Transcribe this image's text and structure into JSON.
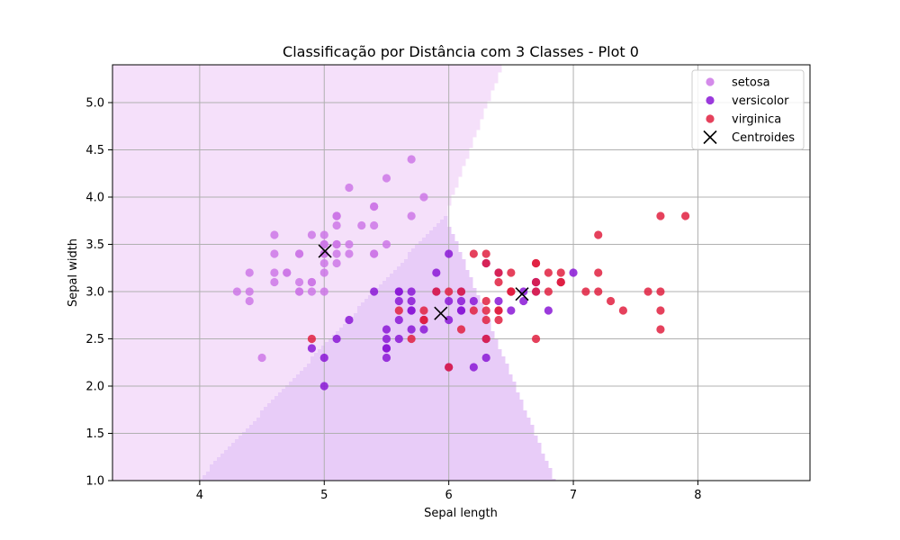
{
  "chart_data": {
    "type": "scatter",
    "title": "Classificação por Distância com 3 Classes - Plot 0",
    "xlabel": "Sepal length",
    "ylabel": "Sepal width",
    "xlim": [
      3.3,
      8.9
    ],
    "ylim": [
      1.0,
      5.4
    ],
    "xticks": [
      4,
      5,
      6,
      7,
      8
    ],
    "yticks": [
      1.0,
      1.5,
      2.0,
      2.5,
      3.0,
      3.5,
      4.0,
      4.5,
      5.0
    ],
    "grid": true,
    "legend": "top-right",
    "regions": [
      {
        "class": "setosa",
        "color": "#f5e0fa"
      },
      {
        "class": "versicolor",
        "color": "#e8ccf8"
      },
      {
        "class": "virginica",
        "color": "#f7ccd6"
      }
    ],
    "series": [
      {
        "name": "setosa",
        "color": "#cc77e6",
        "points": [
          [
            5.1,
            3.5
          ],
          [
            4.9,
            3.0
          ],
          [
            4.7,
            3.2
          ],
          [
            4.6,
            3.1
          ],
          [
            5.0,
            3.6
          ],
          [
            5.4,
            3.9
          ],
          [
            4.6,
            3.4
          ],
          [
            5.0,
            3.4
          ],
          [
            4.4,
            2.9
          ],
          [
            4.9,
            3.1
          ],
          [
            5.4,
            3.7
          ],
          [
            4.8,
            3.4
          ],
          [
            4.8,
            3.0
          ],
          [
            4.3,
            3.0
          ],
          [
            5.8,
            4.0
          ],
          [
            5.7,
            4.4
          ],
          [
            5.4,
            3.9
          ],
          [
            5.1,
            3.5
          ],
          [
            5.7,
            3.8
          ],
          [
            5.1,
            3.8
          ],
          [
            5.4,
            3.4
          ],
          [
            5.1,
            3.7
          ],
          [
            4.6,
            3.6
          ],
          [
            5.1,
            3.3
          ],
          [
            4.8,
            3.4
          ],
          [
            5.0,
            3.0
          ],
          [
            5.0,
            3.4
          ],
          [
            5.2,
            3.5
          ],
          [
            5.2,
            3.4
          ],
          [
            4.7,
            3.2
          ],
          [
            4.8,
            3.1
          ],
          [
            5.4,
            3.4
          ],
          [
            5.2,
            4.1
          ],
          [
            5.5,
            4.2
          ],
          [
            4.9,
            3.1
          ],
          [
            5.0,
            3.2
          ],
          [
            5.5,
            3.5
          ],
          [
            4.9,
            3.6
          ],
          [
            4.4,
            3.0
          ],
          [
            5.1,
            3.4
          ],
          [
            5.0,
            3.5
          ],
          [
            4.5,
            2.3
          ],
          [
            4.4,
            3.2
          ],
          [
            5.0,
            3.5
          ],
          [
            5.1,
            3.8
          ],
          [
            4.8,
            3.0
          ],
          [
            5.1,
            3.8
          ],
          [
            4.6,
            3.2
          ],
          [
            5.3,
            3.7
          ],
          [
            5.0,
            3.3
          ]
        ]
      },
      {
        "name": "versicolor",
        "color": "#8a17d6",
        "points": [
          [
            7.0,
            3.2
          ],
          [
            6.4,
            3.2
          ],
          [
            6.9,
            3.1
          ],
          [
            5.5,
            2.3
          ],
          [
            6.5,
            2.8
          ],
          [
            5.7,
            2.8
          ],
          [
            6.3,
            3.3
          ],
          [
            4.9,
            2.4
          ],
          [
            6.6,
            2.9
          ],
          [
            5.2,
            2.7
          ],
          [
            5.0,
            2.0
          ],
          [
            5.9,
            3.0
          ],
          [
            6.0,
            2.2
          ],
          [
            6.1,
            2.9
          ],
          [
            5.6,
            2.9
          ],
          [
            6.7,
            3.1
          ],
          [
            5.6,
            3.0
          ],
          [
            5.8,
            2.7
          ],
          [
            6.2,
            2.2
          ],
          [
            5.6,
            2.5
          ],
          [
            5.9,
            3.2
          ],
          [
            6.1,
            2.8
          ],
          [
            6.3,
            2.5
          ],
          [
            6.1,
            2.8
          ],
          [
            6.4,
            2.9
          ],
          [
            6.6,
            3.0
          ],
          [
            6.8,
            2.8
          ],
          [
            6.7,
            3.0
          ],
          [
            6.0,
            2.9
          ],
          [
            5.7,
            2.6
          ],
          [
            5.5,
            2.4
          ],
          [
            5.5,
            2.4
          ],
          [
            5.8,
            2.7
          ],
          [
            6.0,
            2.7
          ],
          [
            5.4,
            3.0
          ],
          [
            6.0,
            3.4
          ],
          [
            6.7,
            3.1
          ],
          [
            6.3,
            2.3
          ],
          [
            5.6,
            3.0
          ],
          [
            5.5,
            2.5
          ],
          [
            5.5,
            2.6
          ],
          [
            6.1,
            3.0
          ],
          [
            5.8,
            2.6
          ],
          [
            5.0,
            2.3
          ],
          [
            5.6,
            2.7
          ],
          [
            5.7,
            3.0
          ],
          [
            5.7,
            2.9
          ],
          [
            6.2,
            2.9
          ],
          [
            5.1,
            2.5
          ],
          [
            5.7,
            2.8
          ]
        ]
      },
      {
        "name": "virginica",
        "color": "#e0203f",
        "points": [
          [
            6.3,
            3.3
          ],
          [
            5.8,
            2.7
          ],
          [
            7.1,
            3.0
          ],
          [
            6.3,
            2.9
          ],
          [
            6.5,
            3.0
          ],
          [
            7.6,
            3.0
          ],
          [
            4.9,
            2.5
          ],
          [
            7.3,
            2.9
          ],
          [
            6.7,
            2.5
          ],
          [
            7.2,
            3.6
          ],
          [
            6.5,
            3.2
          ],
          [
            6.4,
            2.7
          ],
          [
            6.8,
            3.0
          ],
          [
            5.7,
            2.5
          ],
          [
            5.8,
            2.8
          ],
          [
            6.4,
            3.2
          ],
          [
            6.5,
            3.0
          ],
          [
            7.7,
            3.8
          ],
          [
            7.7,
            2.6
          ],
          [
            6.0,
            2.2
          ],
          [
            6.9,
            3.2
          ],
          [
            5.6,
            2.8
          ],
          [
            7.7,
            2.8
          ],
          [
            6.3,
            2.7
          ],
          [
            6.7,
            3.3
          ],
          [
            7.2,
            3.2
          ],
          [
            6.2,
            2.8
          ],
          [
            6.1,
            3.0
          ],
          [
            6.4,
            2.8
          ],
          [
            7.2,
            3.0
          ],
          [
            7.4,
            2.8
          ],
          [
            7.9,
            3.8
          ],
          [
            6.4,
            2.8
          ],
          [
            6.3,
            2.8
          ],
          [
            6.1,
            2.6
          ],
          [
            7.7,
            3.0
          ],
          [
            6.3,
            3.4
          ],
          [
            6.4,
            3.1
          ],
          [
            6.0,
            3.0
          ],
          [
            6.9,
            3.1
          ],
          [
            6.7,
            3.1
          ],
          [
            6.9,
            3.1
          ],
          [
            5.8,
            2.7
          ],
          [
            6.8,
            3.2
          ],
          [
            6.7,
            3.3
          ],
          [
            6.7,
            3.0
          ],
          [
            6.3,
            2.5
          ],
          [
            6.5,
            3.0
          ],
          [
            6.2,
            3.4
          ],
          [
            5.9,
            3.0
          ]
        ]
      },
      {
        "name": "Centroides",
        "color": "#000000",
        "marker": "x",
        "points": [
          [
            5.006,
            3.428
          ],
          [
            5.936,
            2.77
          ],
          [
            6.588,
            2.974
          ]
        ]
      }
    ]
  }
}
